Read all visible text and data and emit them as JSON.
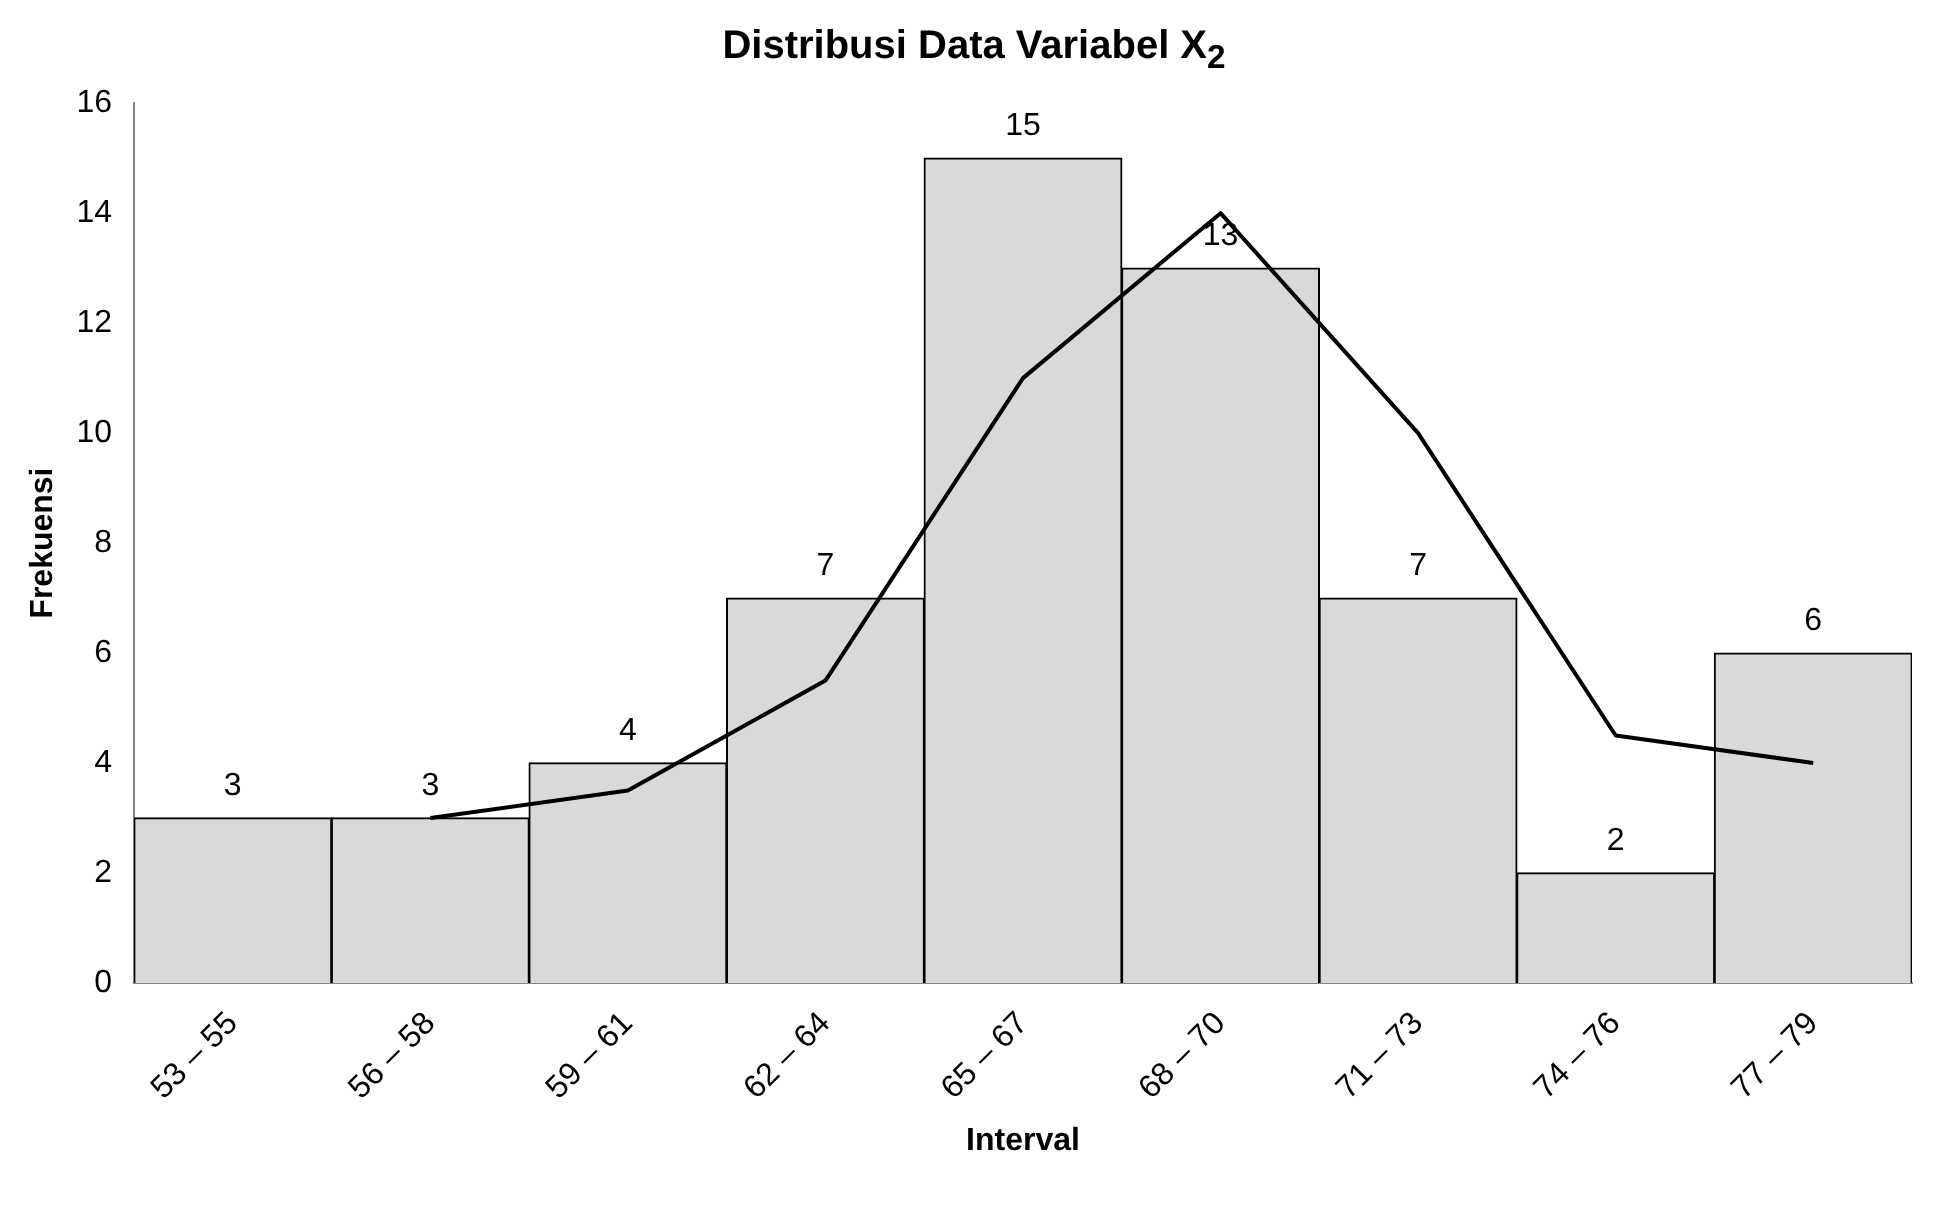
{
  "chart_data": {
    "type": "bar",
    "title": "Distribusi Data Variabel X$_{2}$",
    "xlabel": "Interval",
    "ylabel": "Frekuensi",
    "categories": [
      "53 – 55",
      "56 – 58",
      "59 – 61",
      "62 – 64",
      "65 – 67",
      "68 – 70",
      "71 – 73",
      "74 – 76",
      "77 – 79"
    ],
    "series": [
      {
        "color": "#d9d9d9",
        "values": [
          3,
          3,
          4,
          7,
          15,
          13,
          7,
          2,
          6
        ],
        "value_labels": [
          "3",
          "3",
          "4",
          "7",
          "15",
          "13",
          "7",
          "2",
          "6"
        ]
      },
      {
        "type": "line",
        "color": "#000000",
        "values": [
          null,
          3,
          3.5,
          5.5,
          11,
          14,
          10,
          4.5,
          4
        ]
      }
    ],
    "ylim": [
      0,
      16
    ],
    "yticks": [
      0,
      2,
      4,
      6,
      8,
      10,
      12,
      14,
      16
    ],
    "grid": false,
    "legend": false,
    "marker": "none"
  }
}
